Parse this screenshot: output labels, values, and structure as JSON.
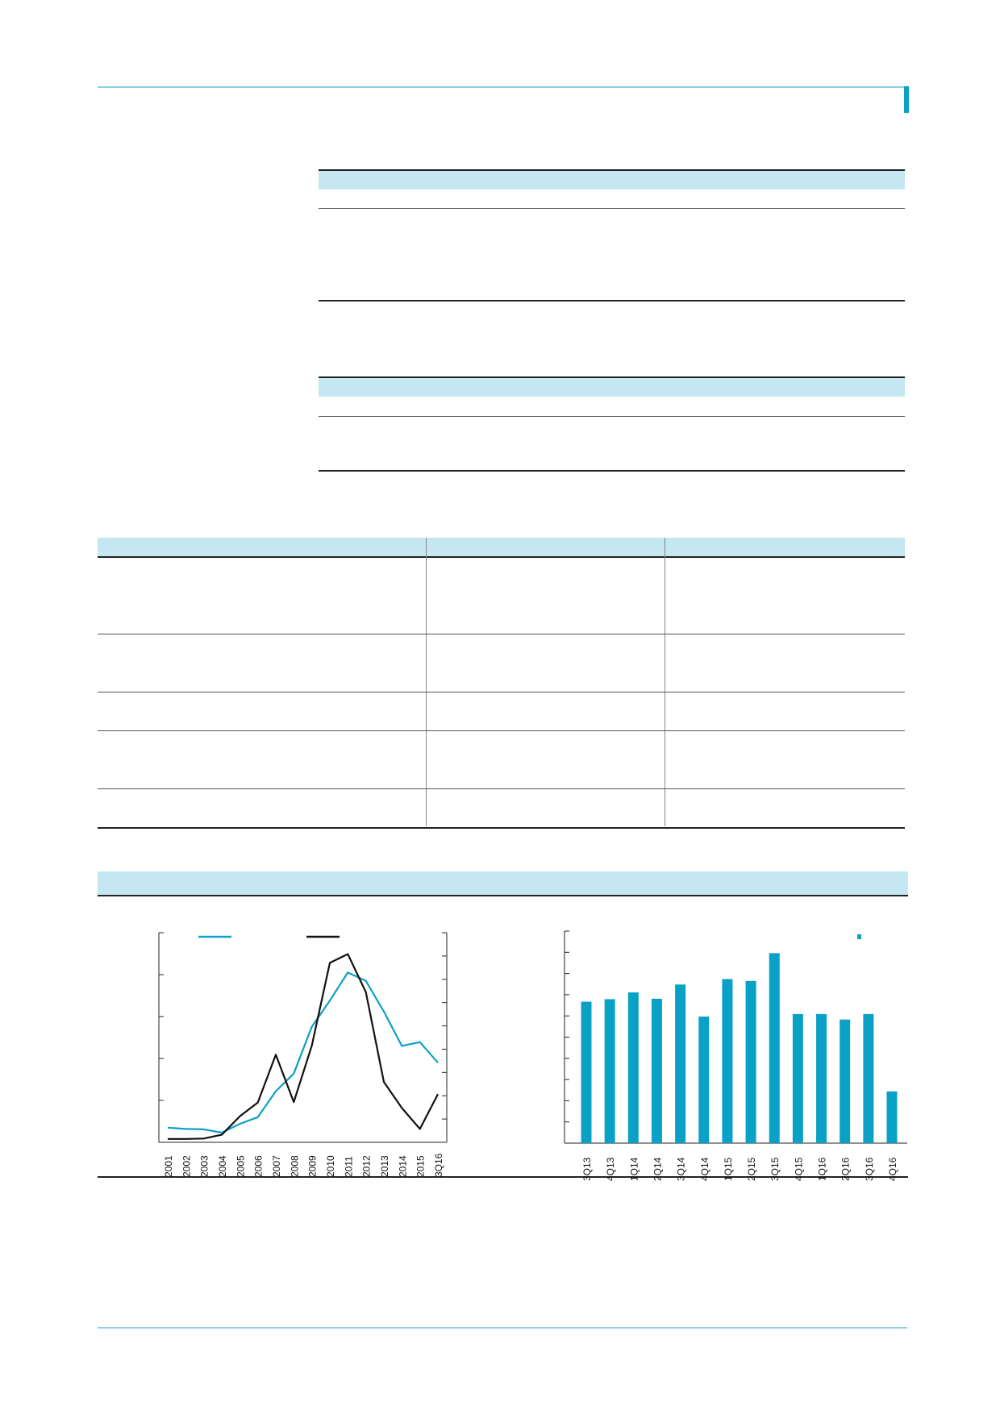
{
  "colors": {
    "accent": "#0aa1c6",
    "band": "#c4e7f1",
    "line_black": "#111111"
  },
  "chart_data": [
    {
      "type": "line",
      "x": [
        "2001",
        "2002",
        "2003",
        "2004",
        "2005",
        "2006",
        "2007",
        "2008",
        "2009",
        "2010",
        "2011",
        "2012",
        "2013",
        "2014",
        "2015",
        "3Q16"
      ],
      "series": [
        {
          "color": "#0aa1c6",
          "values": [
            0.35,
            0.32,
            0.31,
            0.23,
            0.44,
            0.6,
            1.22,
            1.64,
            2.76,
            3.38,
            4.05,
            3.85,
            3.12,
            2.3,
            2.39,
            1.9
          ]
        },
        {
          "color": "#111111",
          "values": [
            0.08,
            0.08,
            0.09,
            0.18,
            0.62,
            0.95,
            2.09,
            0.96,
            2.31,
            4.28,
            4.49,
            3.58,
            1.44,
            0.82,
            0.32,
            1.15
          ]
        }
      ],
      "ylim": [
        0,
        5
      ],
      "y2_ticks": 9,
      "grid": false
    },
    {
      "type": "bar",
      "categories": [
        "3Q13",
        "4Q13",
        "1Q14",
        "2Q14",
        "3Q14",
        "4Q14",
        "1Q15",
        "2Q15",
        "3Q15",
        "4Q15",
        "1Q16",
        "2Q16",
        "3Q16",
        "4Q16"
      ],
      "values": [
        6.67,
        6.79,
        7.11,
        6.81,
        7.48,
        5.97,
        7.74,
        7.65,
        8.96,
        6.09,
        6.09,
        5.83,
        6.09,
        2.44
      ],
      "ylim": [
        0,
        10
      ],
      "y_ticks": 10,
      "legend_position": "top-right",
      "color": "#0aa1c6",
      "grid": false
    }
  ]
}
